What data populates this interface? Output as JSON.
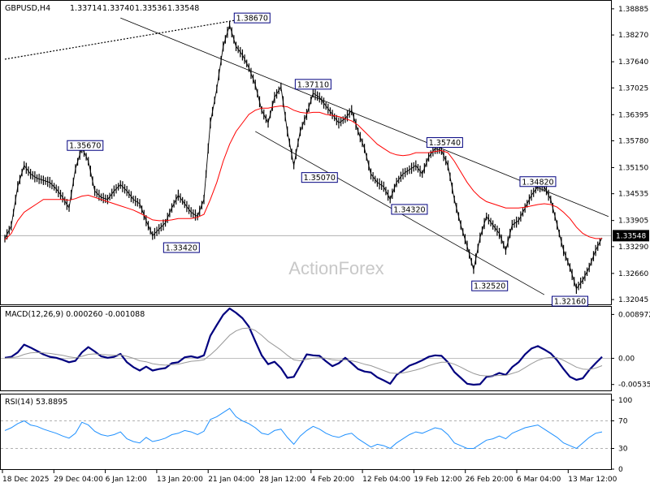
{
  "chart_data": {
    "type": "line",
    "instrument": {
      "header": "GBPUSD,H4",
      "ohlc": [
        "1.33714",
        "1.33740",
        "1.33536",
        "1.33548"
      ]
    },
    "watermark": "ActionForex",
    "x_ticks": [
      "18 Dec 2025",
      "29 Dec 04:00",
      "6 Jan 12:00",
      "13 Jan 20:00",
      "21 Jan 04:00",
      "28 Jan 12:00",
      "4 Feb 20:00",
      "12 Feb 04:00",
      "19 Feb 12:00",
      "26 Feb 20:00",
      "6 Mar 04:00",
      "13 Mar 12:00"
    ],
    "price_panel": {
      "y_ticks": [
        "1.38885",
        "1.38270",
        "1.37640",
        "1.37025",
        "1.36395",
        "1.35780",
        "1.35150",
        "1.34535",
        "1.33905",
        "1.33290",
        "1.32660",
        "1.32045"
      ],
      "ylim": [
        1.3197,
        1.3894
      ],
      "current_price": "1.33548",
      "current_value": 1.33548,
      "series": [
        {
          "name": "",
          "color": "#000000",
          "values": [
            1.3348,
            1.3378,
            1.347,
            1.352,
            1.35,
            1.349,
            1.3485,
            1.348,
            1.3465,
            1.3445,
            1.342,
            1.3512,
            1.3562,
            1.353,
            1.346,
            1.3445,
            1.344,
            1.346,
            1.3475,
            1.346,
            1.344,
            1.343,
            1.339,
            1.3355,
            1.337,
            1.3385,
            1.342,
            1.345,
            1.343,
            1.341,
            1.34,
            1.344,
            1.362,
            1.37,
            1.38,
            1.385,
            1.38,
            1.378,
            1.375,
            1.371,
            1.365,
            1.362,
            1.368,
            1.3705,
            1.36,
            1.352,
            1.36,
            1.364,
            1.369,
            1.368,
            1.366,
            1.364,
            1.362,
            1.363,
            1.365,
            1.36,
            1.356,
            1.35,
            1.348,
            1.347,
            1.344,
            1.348,
            1.35,
            1.351,
            1.352,
            1.35,
            1.354,
            1.356,
            1.3555,
            1.352,
            1.344,
            1.338,
            1.333,
            1.3275,
            1.335,
            1.34,
            1.338,
            1.336,
            1.332,
            1.338,
            1.339,
            1.342,
            1.345,
            1.347,
            1.347,
            1.344,
            1.338,
            1.332,
            1.328,
            1.323,
            1.325,
            1.328,
            1.332,
            1.335
          ]
        },
        {
          "name": "",
          "color": "#ff0000",
          "values": [
            1.3345,
            1.336,
            1.339,
            1.341,
            1.342,
            1.343,
            1.344,
            1.344,
            1.344,
            1.344,
            1.3438,
            1.3442,
            1.3448,
            1.345,
            1.3445,
            1.344,
            1.3435,
            1.343,
            1.3425,
            1.342,
            1.3415,
            1.3408,
            1.34,
            1.3392,
            1.339,
            1.339,
            1.3392,
            1.3395,
            1.3395,
            1.3395,
            1.3398,
            1.3405,
            1.344,
            1.348,
            1.353,
            1.357,
            1.36,
            1.362,
            1.364,
            1.365,
            1.3655,
            1.3655,
            1.3658,
            1.366,
            1.3658,
            1.365,
            1.3645,
            1.3643,
            1.3645,
            1.3645,
            1.364,
            1.3638,
            1.3635,
            1.363,
            1.3625,
            1.3615,
            1.36,
            1.3585,
            1.357,
            1.356,
            1.355,
            1.3545,
            1.3543,
            1.3545,
            1.355,
            1.355,
            1.355,
            1.3553,
            1.3555,
            1.355,
            1.353,
            1.3505,
            1.348,
            1.346,
            1.3445,
            1.3435,
            1.343,
            1.3425,
            1.342,
            1.342,
            1.342,
            1.3422,
            1.3425,
            1.3428,
            1.343,
            1.3428,
            1.3422,
            1.341,
            1.3395,
            1.3375,
            1.336,
            1.3352,
            1.3348,
            1.3348
          ]
        }
      ],
      "channel_upper": [
        [
          18,
          1.3867
        ],
        [
          94,
          1.34
        ]
      ],
      "channel_lower": [
        [
          39,
          1.36
        ],
        [
          84,
          1.3216
        ]
      ],
      "ma200": [
        [
          0,
          1.377
        ],
        [
          38,
          1.3867
        ]
      ],
      "annotations": [
        {
          "text": "1.35670",
          "x": 12.5,
          "y": 1.3567,
          "side": "top"
        },
        {
          "text": "1.33420",
          "x": 27.5,
          "y": 1.3342,
          "side": "bottom"
        },
        {
          "text": "1.38670",
          "x": 38.5,
          "y": 1.3867,
          "side": "top"
        },
        {
          "text": "1.37110",
          "x": 48,
          "y": 1.3711,
          "side": "top"
        },
        {
          "text": "1.35070",
          "x": 49,
          "y": 1.3507,
          "side": "bottom"
        },
        {
          "text": "1.34320",
          "x": 63,
          "y": 1.3432,
          "side": "bottom"
        },
        {
          "text": "1.35740",
          "x": 68.5,
          "y": 1.3574,
          "side": "top"
        },
        {
          "text": "1.32520",
          "x": 75.5,
          "y": 1.3252,
          "side": "bottom"
        },
        {
          "text": "1.34820",
          "x": 83,
          "y": 1.3482,
          "side": "top"
        },
        {
          "text": "1.32160",
          "x": 88,
          "y": 1.3216,
          "side": "bottom"
        }
      ]
    },
    "macd_panel": {
      "label": "MACD(12,26,9) 0.000260 -0.001088",
      "y_ticks": [
        "0.008972",
        "0.00",
        "-0.005356"
      ],
      "ylim": [
        -0.0064,
        0.0102
      ],
      "series": [
        {
          "name": "",
          "color": "#00007f",
          "values": [
            0.0001,
            0.0003,
            0.0012,
            0.0028,
            0.0022,
            0.0015,
            0.0008,
            0.0003,
            0.0001,
            -0.0003,
            -0.0008,
            -0.0005,
            0.0012,
            0.0023,
            0.0014,
            0.0004,
            0.0001,
            0.0003,
            0.0009,
            -0.0008,
            -0.0018,
            -0.0025,
            -0.0017,
            -0.0025,
            -0.0022,
            -0.002,
            -0.001,
            -0.0008,
            0.0002,
            0.0004,
            0.0001,
            0.0006,
            0.0046,
            0.0068,
            0.0089,
            0.0102,
            0.0093,
            0.0082,
            0.0065,
            0.0035,
            0.0006,
            -0.0012,
            -0.0007,
            -0.002,
            -0.004,
            -0.0038,
            -0.0015,
            0.0008,
            0.0006,
            0.0005,
            -0.0006,
            -0.0016,
            -0.001,
            0.0001,
            -0.001,
            -0.0022,
            -0.0027,
            -0.0029,
            -0.0039,
            -0.0045,
            -0.0052,
            -0.0034,
            -0.0025,
            -0.0015,
            -0.001,
            -0.0004,
            0.0003,
            0.0006,
            0.0005,
            -0.0008,
            -0.0028,
            -0.004,
            -0.0052,
            -0.0054,
            -0.0053,
            -0.0038,
            -0.0036,
            -0.003,
            -0.0034,
            -0.0018,
            -0.0008,
            0.0008,
            0.002,
            0.0025,
            0.0018,
            0.001,
            -0.0004,
            -0.0022,
            -0.0038,
            -0.0044,
            -0.0041,
            -0.0024,
            -0.001,
            0.0003
          ]
        },
        {
          "name": "",
          "color": "#999999",
          "values": [
            0.0,
            0.0001,
            0.0003,
            0.0008,
            0.0011,
            0.0012,
            0.0011,
            0.001,
            0.0008,
            0.0006,
            0.0003,
            0.0001,
            0.0004,
            0.0008,
            0.0009,
            0.0008,
            0.0007,
            0.0006,
            0.0007,
            0.0004,
            0.0,
            -0.0005,
            -0.0007,
            -0.0011,
            -0.0013,
            -0.0014,
            -0.0013,
            -0.0012,
            -0.0009,
            -0.0006,
            -0.0005,
            -0.0003,
            0.0007,
            0.0019,
            0.0033,
            0.0047,
            0.0056,
            0.0061,
            0.0062,
            0.0057,
            0.0047,
            0.0035,
            0.0026,
            0.0017,
            0.0006,
            -0.0003,
            -0.0005,
            -0.0002,
            0.0,
            0.0001,
            0.0,
            -0.0003,
            -0.0004,
            -0.0003,
            -0.0005,
            -0.0008,
            -0.0012,
            -0.0015,
            -0.002,
            -0.0025,
            -0.003,
            -0.0031,
            -0.003,
            -0.0027,
            -0.0024,
            -0.002,
            -0.0015,
            -0.0011,
            -0.0008,
            -0.0008,
            -0.0012,
            -0.0018,
            -0.0025,
            -0.0031,
            -0.0035,
            -0.0036,
            -0.0036,
            -0.0035,
            -0.0035,
            -0.0031,
            -0.0027,
            -0.0019,
            -0.0011,
            -0.0004,
            0.0,
            0.0002,
            0.0001,
            -0.0004,
            -0.0011,
            -0.0018,
            -0.0022,
            -0.0023,
            -0.002,
            -0.0015
          ]
        }
      ]
    },
    "rsi_panel": {
      "label": "RSI(14) 53.8895",
      "y_ticks": [
        "100",
        "70",
        "30",
        "0"
      ],
      "ylim": [
        0,
        100
      ],
      "levels": [
        70,
        30
      ],
      "series": [
        {
          "name": "",
          "color": "#1e90ff",
          "values": [
            56,
            60,
            66,
            70,
            64,
            62,
            58,
            55,
            52,
            48,
            45,
            52,
            68,
            64,
            55,
            50,
            48,
            50,
            54,
            44,
            40,
            38,
            46,
            40,
            42,
            45,
            50,
            52,
            56,
            54,
            50,
            55,
            72,
            76,
            82,
            88,
            76,
            70,
            66,
            60,
            52,
            50,
            56,
            58,
            46,
            36,
            48,
            56,
            62,
            58,
            52,
            48,
            46,
            50,
            52,
            44,
            38,
            32,
            36,
            34,
            30,
            38,
            44,
            50,
            54,
            52,
            56,
            60,
            58,
            50,
            38,
            34,
            30,
            30,
            36,
            42,
            44,
            48,
            44,
            52,
            56,
            60,
            62,
            64,
            58,
            52,
            46,
            38,
            34,
            30,
            38,
            46,
            52,
            54
          ]
        }
      ]
    }
  }
}
